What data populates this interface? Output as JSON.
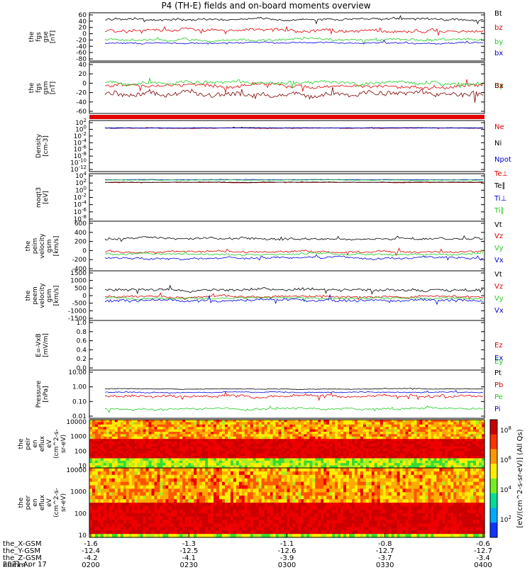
{
  "title": "P4 (TH-E) fields and on-board moments overview",
  "colors": {
    "black": "#000000",
    "red": "#e00000",
    "green": "#22cc22",
    "blue": "#0000dd",
    "darkred": "#7a0000",
    "frame": "#000000"
  },
  "chart_data": [
    {
      "type": "line",
      "id": "fgs_gse",
      "ylabel": [
        "the",
        "fgs",
        "gse",
        "[nT]"
      ],
      "ylim": [
        -80,
        60
      ],
      "yticks": [
        "60",
        "40",
        "20",
        "0",
        "-20",
        "-40",
        "-60",
        "-80"
      ],
      "series": [
        {
          "name": "Bt",
          "color": "black",
          "base": 40,
          "amp": 8,
          "seed": 1
        },
        {
          "name": "bz",
          "color": "red",
          "base": 8,
          "amp": 12,
          "seed": 2
        },
        {
          "name": "by",
          "color": "green",
          "base": -18,
          "amp": 8,
          "seed": 3
        },
        {
          "name": "bx",
          "color": "blue",
          "base": -28,
          "amp": 5,
          "seed": 4
        }
      ]
    },
    {
      "type": "line",
      "id": "fgs_gsm",
      "ylabel": [
        "the",
        "fgs",
        "gsm",
        "[nT]"
      ],
      "ylim": [
        -80,
        60
      ],
      "yticks": [
        "40",
        "20",
        "0",
        "-20",
        "-40",
        "-60"
      ],
      "series": [
        {
          "name": "Bz",
          "color": "red",
          "base": -5,
          "amp": 12,
          "seed": 5
        },
        {
          "name": "By",
          "color": "green",
          "base": 5,
          "amp": 12,
          "seed": 6
        },
        {
          "name": "Bx",
          "color": "darkred",
          "base": -25,
          "amp": 18,
          "seed": 7
        }
      ],
      "legend_overlap": true
    },
    {
      "type": "line",
      "id": "density",
      "log": true,
      "ylabel": [
        "Density",
        "[cm-3]"
      ],
      "ylim": [
        -13,
        3
      ],
      "yticks": [
        "10^2",
        "10^0",
        "10^-2",
        "10^-4",
        "10^-6",
        "10^-8",
        "10^-10",
        "10^-12"
      ],
      "series": [
        {
          "name": "Ne",
          "color": "red",
          "base": 0.6,
          "amp": 0.2,
          "seed": 8
        },
        {
          "name": "Ni",
          "color": "black",
          "base": 0.7,
          "amp": 0.15,
          "seed": 9
        },
        {
          "name": "Npot",
          "color": "blue",
          "base": 0.65,
          "amp": 0.1,
          "seed": 10
        }
      ]
    },
    {
      "type": "line",
      "id": "moqt3",
      "log": true,
      "ylabel": [
        "moqt3",
        "[eV]"
      ],
      "ylim": [
        -10,
        5
      ],
      "yticks": [
        "10^4",
        "10^2",
        "10^0",
        "10^-2",
        "10^-4",
        "10^-6",
        "10^-8"
      ],
      "series": [
        {
          "name": "Te⊥",
          "color": "red",
          "base": 2.2,
          "amp": 0.15,
          "seed": 11
        },
        {
          "name": "Te∥",
          "color": "black",
          "base": 2.3,
          "amp": 0.15,
          "seed": 12
        },
        {
          "name": "Ti⊥",
          "color": "blue",
          "base": 3.1,
          "amp": 0.15,
          "seed": 13
        },
        {
          "name": "Ti∥",
          "color": "green",
          "base": 3.0,
          "amp": 0.15,
          "seed": 14
        }
      ]
    },
    {
      "type": "line",
      "id": "peim_vel",
      "ylabel": [
        "the",
        "peim",
        "velocity",
        "gsm",
        "[km/s]"
      ],
      "ylim": [
        -400,
        600
      ],
      "yticks": [
        "600",
        "400",
        "200",
        "0",
        "-200",
        "-400"
      ],
      "series": [
        {
          "name": "Vt",
          "color": "black",
          "base": 250,
          "amp": 60,
          "seed": 15
        },
        {
          "name": "Vz",
          "color": "red",
          "base": -10,
          "amp": 50,
          "seed": 16
        },
        {
          "name": "Vy",
          "color": "green",
          "base": -60,
          "amp": 50,
          "seed": 17
        },
        {
          "name": "Vx",
          "color": "blue",
          "base": -150,
          "amp": 50,
          "seed": 18
        }
      ]
    },
    {
      "type": "line",
      "id": "peem_vel",
      "ylabel": [
        "the",
        "peem",
        "velocity",
        "gsm",
        "[km/s]"
      ],
      "ylim": [
        -1500,
        1500
      ],
      "yticks": [
        "1500",
        "1000",
        "500",
        "0",
        "-500",
        "-1000",
        "-1500"
      ],
      "series": [
        {
          "name": "Vt",
          "color": "black",
          "base": 350,
          "amp": 200,
          "seed": 19
        },
        {
          "name": "Vz",
          "color": "red",
          "base": -50,
          "amp": 150,
          "seed": 20
        },
        {
          "name": "Vy",
          "color": "green",
          "base": -150,
          "amp": 150,
          "seed": 21
        },
        {
          "name": "Vx",
          "color": "blue",
          "base": -300,
          "amp": 200,
          "seed": 22
        }
      ]
    },
    {
      "type": "line",
      "id": "efield",
      "ylabel": [
        "E=-VxB",
        "[mV/m]"
      ],
      "ylim": [
        0,
        1
      ],
      "yticks": [
        "1.0",
        "0.8",
        "0.6",
        "0.4",
        "0.2",
        "0.0"
      ],
      "series": [
        {
          "name": "Ez",
          "color": "red"
        },
        {
          "name": "Ey",
          "color": "green"
        },
        {
          "name": "Ex",
          "color": "blue"
        }
      ],
      "empty": true
    },
    {
      "type": "line",
      "id": "pressure",
      "log": true,
      "ylabel": [
        "Pressure",
        "[nPa]"
      ],
      "ylim": [
        -1.3,
        1
      ],
      "yticks": [
        "10.00",
        "1.00",
        "0.10",
        "0.01"
      ],
      "series": [
        {
          "name": "Pt",
          "color": "black",
          "base": 0.1,
          "amp": 0.04,
          "seed": 23
        },
        {
          "name": "Pb",
          "color": "red",
          "base": -0.25,
          "amp": 0.15,
          "seed": 24
        },
        {
          "name": "Pe",
          "color": "green",
          "base": -0.85,
          "amp": 0.12,
          "seed": 25
        },
        {
          "name": "Pi",
          "color": "blue",
          "base": -0.05,
          "amp": 0.06,
          "seed": 26
        }
      ]
    },
    {
      "type": "heatmap",
      "id": "peir",
      "ylabel": [
        "the",
        "peir",
        "en",
        "eflux",
        "eV",
        "(cm^2-s-",
        "sr-eV)"
      ],
      "yticks": [
        "10000",
        "1000",
        "100",
        "10"
      ],
      "seed": 27,
      "hot_band": [
        0.35,
        0.8
      ]
    },
    {
      "type": "heatmap",
      "id": "peer",
      "ylabel": [
        "the",
        "peer",
        "en",
        "eflux",
        "eV",
        "(cm^2-s-",
        "sr-eV)"
      ],
      "yticks": [
        "10000",
        "1000",
        "100",
        "10"
      ],
      "seed": 28,
      "hot_band": [
        0.45,
        0.95
      ]
    }
  ],
  "colorbar": {
    "ticks": [
      "10^8",
      "10^6",
      "10^4",
      "10^2"
    ],
    "label": "[eV/(cm^2-s-sr-eV)] (All Qs)"
  },
  "xaxis": {
    "tick_labels": [
      "0200",
      "0230",
      "0300",
      "0330",
      "0400"
    ],
    "rows": [
      {
        "label": "the_X-GSM",
        "values": [
          "-1.6",
          "-1.3",
          "-1.1",
          "-0.8",
          "-0.6"
        ]
      },
      {
        "label": "the_Y-GSM",
        "values": [
          "-12.4",
          "-12.5",
          "-12.6",
          "-12.7",
          "-12.7"
        ]
      },
      {
        "label": "the_Z-GSM",
        "values": [
          "-4.2",
          "-4.1",
          "-3.9",
          "-3.7",
          "-3.4"
        ]
      },
      {
        "label": "hhmm",
        "values": [
          "0200",
          "0230",
          "0300",
          "0330",
          "0400"
        ]
      }
    ],
    "date": "2021 Apr 17"
  }
}
